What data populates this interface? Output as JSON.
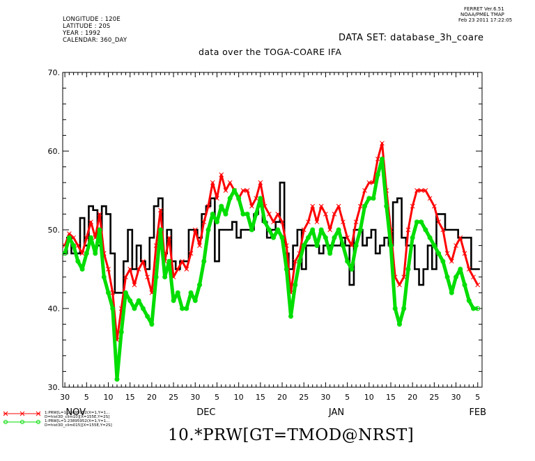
{
  "header": {
    "longitude": "LONGITUDE : 120E",
    "latitude": "LATITUDE : 20S",
    "year": "YEAR : 1992",
    "calendar": "CALENDAR: 360_DAY",
    "ferret_version": "FERRET Ver.6.51",
    "ferret_org": "NOAA/PMEL TMAP",
    "ferret_date": "Feb 23 2011 17:22:05",
    "dataset": "DATA SET: database_3h_coare",
    "subtitle": "data over the TOGA-COARE IFA"
  },
  "footer_title": "10.*PRW[GT=TMOD@NRST]",
  "legend": {
    "red_line1": "1:PRW[L=1:23895952(X=1,Y=1...",
    "red_line2": "D=hist3D_clim10][X=155E,Y=2S]",
    "green_line1": "1:PRW[L=1:23895952(X=1,Y=1...",
    "green_line2": "D=hist3D_clim015][X=155E,Y=2S]"
  },
  "chart_data": {
    "type": "line",
    "ylim": [
      30,
      70
    ],
    "yticks": [
      "30.",
      "40.",
      "50.",
      "60.",
      "70."
    ],
    "x_tick_labels": [
      "30",
      "5",
      "10",
      "15",
      "20",
      "25",
      "30",
      "5",
      "10",
      "15",
      "20",
      "25",
      "30",
      "5",
      "10",
      "15",
      "20",
      "25",
      "30",
      "5"
    ],
    "month_labels": [
      "NOV",
      "DEC",
      "JAN",
      "FEB"
    ],
    "x_unit": "day index from Oct 30 (360-day calendar)",
    "xlim": [
      -0.5,
      96
    ],
    "colors": {
      "black": "#000000",
      "red": "#ff0000",
      "green": "#00dd00"
    },
    "series": [
      {
        "name": "black",
        "style": "step",
        "x": [
          0,
          1,
          2,
          3,
          4,
          5,
          6,
          7,
          8,
          9,
          10,
          11,
          12,
          13,
          14,
          15,
          16,
          17,
          18,
          19,
          20,
          21,
          22,
          23,
          24,
          25,
          26,
          27,
          28,
          29,
          30,
          31,
          32,
          33,
          34,
          35,
          36,
          37,
          38,
          39,
          40,
          41,
          42,
          43,
          44,
          45,
          46,
          47,
          48,
          49,
          50,
          51,
          52,
          53,
          54,
          55,
          56,
          57,
          58,
          59,
          60,
          61,
          62,
          63,
          64,
          65,
          66,
          67,
          68,
          69,
          70,
          71,
          72,
          73,
          74,
          75,
          76,
          77,
          78,
          79,
          80,
          81,
          82,
          83,
          84,
          85,
          86,
          87,
          88,
          89,
          90,
          91,
          92,
          93,
          94,
          95
        ],
        "values": [
          47,
          49,
          47,
          47,
          51.5,
          48,
          53,
          52.5,
          48,
          53,
          52,
          47,
          42,
          42,
          46,
          50,
          45,
          48,
          46,
          45,
          49,
          53,
          54,
          47,
          50,
          46,
          45,
          46,
          46,
          50,
          50,
          49,
          52,
          53,
          54,
          46,
          50,
          50,
          50,
          51,
          49,
          50,
          50,
          50,
          52,
          53,
          51,
          49,
          50,
          51,
          56,
          47,
          45,
          48,
          50,
          45,
          48,
          48,
          48,
          47,
          48,
          48,
          48,
          48,
          49,
          48,
          43,
          50,
          50,
          48,
          49,
          50,
          47,
          48,
          49,
          48,
          53.5,
          54,
          49,
          48,
          48,
          45,
          43,
          45,
          48,
          45,
          52,
          52,
          50,
          50,
          50,
          49,
          49,
          49,
          45,
          45
        ]
      },
      {
        "name": "red",
        "style": "line",
        "x": [
          0,
          1,
          2,
          3,
          4,
          5,
          6,
          7,
          8,
          9,
          10,
          11,
          12,
          13,
          14,
          15,
          16,
          17,
          18,
          19,
          20,
          21,
          22,
          23,
          24,
          25,
          26,
          27,
          28,
          29,
          30,
          31,
          32,
          33,
          34,
          35,
          36,
          37,
          38,
          39,
          40,
          41,
          42,
          43,
          44,
          45,
          46,
          47,
          48,
          49,
          50,
          51,
          52,
          53,
          54,
          55,
          56,
          57,
          58,
          59,
          60,
          61,
          62,
          63,
          64,
          65,
          66,
          67,
          68,
          69,
          70,
          71,
          72,
          73,
          74,
          75,
          76,
          77,
          78,
          79,
          80,
          81,
          82,
          83,
          84,
          85,
          86,
          87,
          88,
          89,
          90,
          91,
          92,
          93,
          94,
          95
        ],
        "values": [
          48,
          49.5,
          49,
          48,
          47,
          49,
          51,
          49,
          52,
          47,
          45,
          42,
          36,
          40,
          44,
          45,
          43,
          45,
          46,
          44,
          42,
          48,
          52.5,
          46,
          49,
          44,
          45,
          46,
          45,
          47,
          50,
          48,
          51,
          53,
          56,
          54,
          57,
          55,
          56,
          55,
          54,
          55,
          55,
          53,
          54,
          56,
          53,
          52,
          51,
          52,
          51,
          48,
          42,
          46,
          47,
          50,
          51,
          53,
          51,
          53,
          52,
          50,
          52,
          53,
          51,
          49,
          48,
          51,
          53,
          55,
          56,
          56,
          59,
          61,
          55,
          50,
          44,
          43,
          44,
          50,
          53,
          55,
          55,
          55,
          54,
          53,
          51,
          50,
          47,
          46,
          48,
          49,
          47,
          45,
          44,
          43
        ]
      },
      {
        "name": "green",
        "style": "line",
        "x": [
          0,
          1,
          2,
          3,
          4,
          5,
          6,
          7,
          8,
          9,
          10,
          11,
          12,
          13,
          14,
          15,
          16,
          17,
          18,
          19,
          20,
          21,
          22,
          23,
          24,
          25,
          26,
          27,
          28,
          29,
          30,
          31,
          32,
          33,
          34,
          35,
          36,
          37,
          38,
          39,
          40,
          41,
          42,
          43,
          44,
          45,
          46,
          47,
          48,
          49,
          50,
          51,
          52,
          53,
          54,
          55,
          56,
          57,
          58,
          59,
          60,
          61,
          62,
          63,
          64,
          65,
          66,
          67,
          68,
          69,
          70,
          71,
          72,
          73,
          74,
          75,
          76,
          77,
          78,
          79,
          80,
          81,
          82,
          83,
          84,
          85,
          86,
          87,
          88,
          89,
          90,
          91,
          92,
          93,
          94,
          95
        ],
        "values": [
          47,
          49,
          48,
          46,
          45,
          47,
          49,
          47,
          50,
          44,
          42,
          40,
          31,
          37,
          42,
          41,
          40,
          41,
          40,
          39,
          38,
          44,
          50,
          44,
          46,
          41,
          42,
          40,
          40,
          42,
          41,
          43,
          46,
          50,
          52,
          51,
          53,
          52,
          54,
          55,
          54,
          52,
          52,
          50,
          52,
          54,
          51,
          50,
          49,
          50,
          49,
          45,
          39,
          43,
          46,
          48,
          49,
          50,
          48,
          50,
          49,
          47,
          49,
          50,
          48,
          46,
          45,
          48,
          50,
          53,
          54,
          54,
          57,
          59,
          53,
          48,
          40,
          38,
          40,
          45,
          49,
          51,
          51,
          50,
          49,
          48,
          47,
          46,
          44,
          42,
          44,
          45,
          43,
          41,
          40,
          40
        ]
      }
    ]
  }
}
